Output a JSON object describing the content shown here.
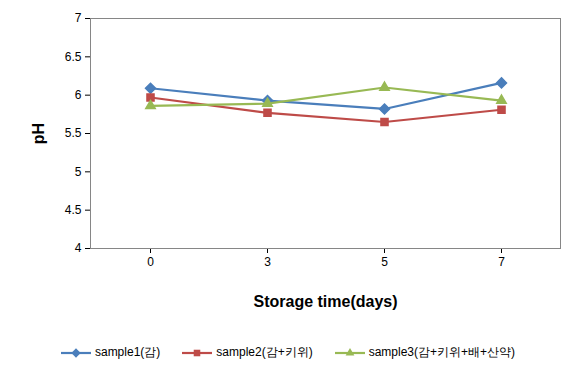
{
  "chart_data": {
    "type": "line",
    "x_label": "Storage time(days)",
    "y_label": "pH",
    "categories": [
      "0",
      "3",
      "5",
      "7"
    ],
    "series": [
      {
        "name": "sample1(감)",
        "color": "#4a7ebb",
        "marker": "diamond",
        "line_style": "solid",
        "values": [
          6.09,
          5.93,
          5.82,
          6.16
        ]
      },
      {
        "name": "sample2(감+키위)",
        "color": "#be4b48",
        "marker": "square",
        "line_style": "solid",
        "values": [
          5.97,
          5.77,
          5.65,
          5.81
        ]
      },
      {
        "name": "sample3(감+키위+배+산약)",
        "color": "#98b954",
        "marker": "triangle",
        "line_style": "solid",
        "values": [
          5.86,
          5.89,
          6.1,
          5.93
        ]
      }
    ],
    "ylim": [
      4,
      7
    ],
    "yticks": [
      4,
      4.5,
      5,
      5.5,
      6,
      6.5,
      7
    ],
    "grid": false,
    "legend": "bottom"
  }
}
